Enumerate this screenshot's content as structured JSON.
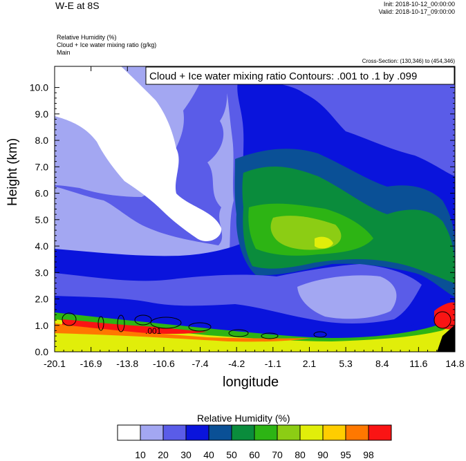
{
  "header": {
    "title": "W-E at 8S",
    "init": "Init: 2018-10-12_00:00:00",
    "valid": "Valid: 2018-10-17_09:00:00",
    "field1": "Relative Humidity   (%)",
    "field2": "Cloud + Ice water mixing ratio   (g/kg)",
    "field3": "Main",
    "cross_section": "Cross-Section: (130,346) to (454,346)"
  },
  "colors": {
    "levels": [
      "#ffffff",
      "#a3a7f2",
      "#5a5ce8",
      "#0a14dc",
      "#0a5096",
      "#0a8c3c",
      "#2db414",
      "#8ccd14",
      "#e1ee0a",
      "#ffcd00",
      "#ff7800",
      "#fa1414"
    ]
  },
  "chart_data": {
    "type": "heatmap",
    "title": "Cloud + Ice water mixing ratio Contours: .001 to .1 by .099",
    "xlabel": "longitude",
    "ylabel": "Height (km)",
    "xlim": [
      -20.1,
      14.8
    ],
    "ylim": [
      0.0,
      10.8
    ],
    "x_ticks": [
      "-20.1",
      "-16.9",
      "-13.8",
      "-10.6",
      "-7.4",
      "-4.2",
      "-1.1",
      "2.1",
      "5.3",
      "8.4",
      "11.6",
      "14.8"
    ],
    "y_ticks": [
      "0.0",
      "1.0",
      "2.0",
      "3.0",
      "4.0",
      "5.0",
      "6.0",
      "7.0",
      "8.0",
      "9.0",
      "10.0"
    ],
    "contour_label": ".001",
    "colorbar": {
      "title": "Relative Humidity  (%)",
      "labels": [
        "10",
        "20",
        "30",
        "40",
        "50",
        "60",
        "70",
        "80",
        "90",
        "95",
        "98"
      ]
    }
  }
}
